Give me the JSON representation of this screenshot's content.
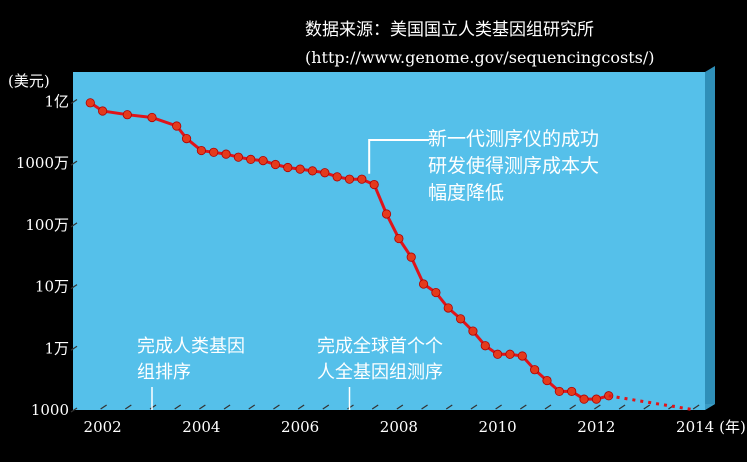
{
  "source": {
    "line1": "数据来源：美国国立人类基因组研究所",
    "line2": "(http://www.genome.gov/sequencingcosts/)"
  },
  "colors": {
    "background": "#000000",
    "plot_face": "#55c0ea",
    "plot_side": "#2f8fb8",
    "plot_bottom": "#3a9cc5",
    "line": "#e0141a",
    "marker": "#e43a1c",
    "annotation_white": "#ffffff"
  },
  "chart_data": {
    "type": "line",
    "title": "",
    "xlabel": "(年)",
    "ylabel": "(美元)",
    "y_scale": "log",
    "ylim": [
      1000,
      300000000
    ],
    "xlim": [
      2001.4,
      2014.2
    ],
    "grid": false,
    "x_ticks": [
      {
        "value": 2002,
        "label": "2002"
      },
      {
        "value": 2004,
        "label": "2004"
      },
      {
        "value": 2006,
        "label": "2006"
      },
      {
        "value": 2008,
        "label": "2008"
      },
      {
        "value": 2010,
        "label": "2010"
      },
      {
        "value": 2012,
        "label": "2012"
      },
      {
        "value": 2014,
        "label": "2014"
      }
    ],
    "y_ticks": [
      {
        "value": 1000,
        "label": "1000"
      },
      {
        "value": 10000,
        "label": "1万"
      },
      {
        "value": 100000,
        "label": "10万"
      },
      {
        "value": 1000000,
        "label": "100万"
      },
      {
        "value": 10000000,
        "label": "1000万"
      },
      {
        "value": 100000000,
        "label": "1亿"
      }
    ],
    "series": [
      {
        "type": "solid",
        "x": [
          2001.75,
          2002.0,
          2002.5,
          2003.0,
          2003.5,
          2003.7,
          2004.0,
          2004.25,
          2004.5,
          2004.75,
          2005.0,
          2005.25,
          2005.5,
          2005.75,
          2006.0,
          2006.25,
          2006.5,
          2006.75,
          2007.0,
          2007.25,
          2007.5,
          2007.75,
          2008.0,
          2008.25,
          2008.5,
          2008.75,
          2009.0,
          2009.25,
          2009.5,
          2009.75,
          2010.0,
          2010.25,
          2010.5,
          2010.75,
          2011.0,
          2011.25,
          2011.5,
          2011.75,
          2012.0,
          2012.25
        ],
        "values": [
          95000000,
          70000000,
          61000000,
          55000000,
          40000000,
          25000000,
          16000000,
          15000000,
          14000000,
          12500000,
          11500000,
          11000000,
          9500000,
          8500000,
          8000000,
          7500000,
          7000000,
          6000000,
          5500000,
          5500000,
          4500000,
          1500000,
          600000,
          300000,
          110000,
          80000,
          45000,
          30000,
          19000,
          11000,
          8000,
          8000,
          7500,
          4500,
          3000,
          2000,
          2000,
          1500,
          1500,
          1700
        ]
      },
      {
        "type": "dotted",
        "x": [
          2012.25,
          2014.0
        ],
        "values": [
          1700,
          1000
        ]
      }
    ],
    "annotations": [
      {
        "lines": [
          "新一代测序仪的成功",
          "研发使得测序成本大",
          "幅度降低"
        ],
        "color": "#ffffff",
        "at_x": 2007.5
      },
      {
        "lines": [
          "完成人类基因",
          "组排序"
        ],
        "color": "#ffffff",
        "at_x": 2003.0
      },
      {
        "lines": [
          "完成全球首个个",
          "人全基因组测序"
        ],
        "color": "#ffffff",
        "at_x": 2007.0
      }
    ]
  }
}
